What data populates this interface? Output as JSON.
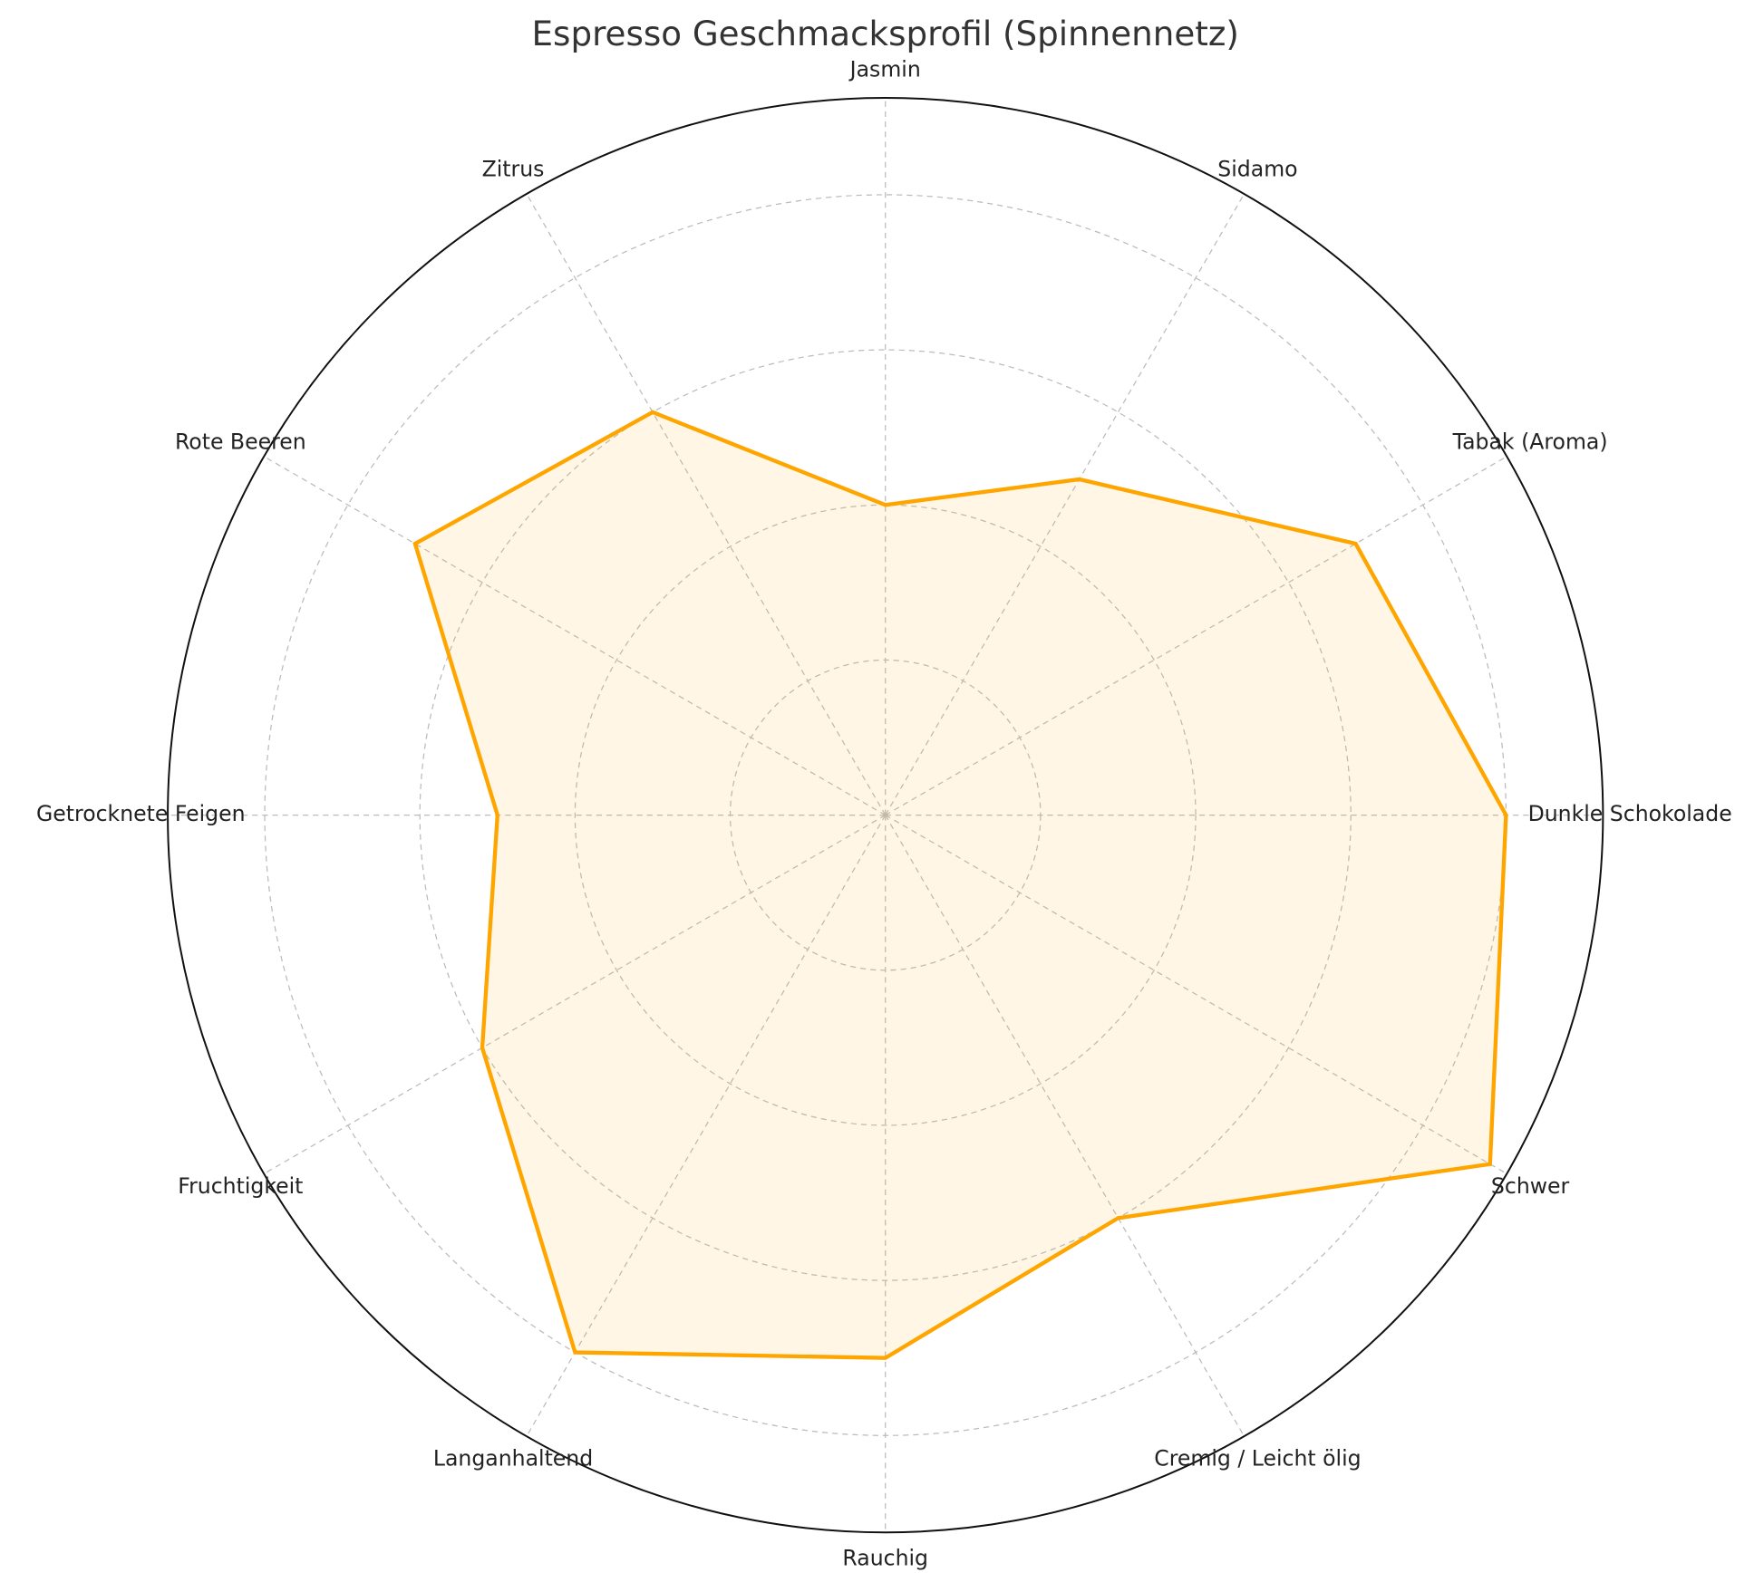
{
  "chart_data": {
    "type": "radar",
    "title": "Espresso Geschmacksprofil (Spinnennetz)",
    "categories": [
      "Dunkle Schokolade",
      "Tabak (Aroma)",
      "Sidamo",
      "Jasmin",
      "Zitrus",
      "Rote Beeren",
      "Getrocknete Feigen",
      "Fruchtigkeit",
      "Langanhaltend",
      "Rauchig",
      "Cremig / Leicht ölig",
      "Schwer"
    ],
    "values": [
      8,
      7,
      5,
      4,
      6,
      7,
      5,
      6,
      8,
      7,
      6,
      9
    ],
    "color": "#FFA500",
    "ylim": [
      0,
      9.25
    ],
    "yticks": [
      2,
      4,
      6,
      8
    ],
    "grid": true
  }
}
